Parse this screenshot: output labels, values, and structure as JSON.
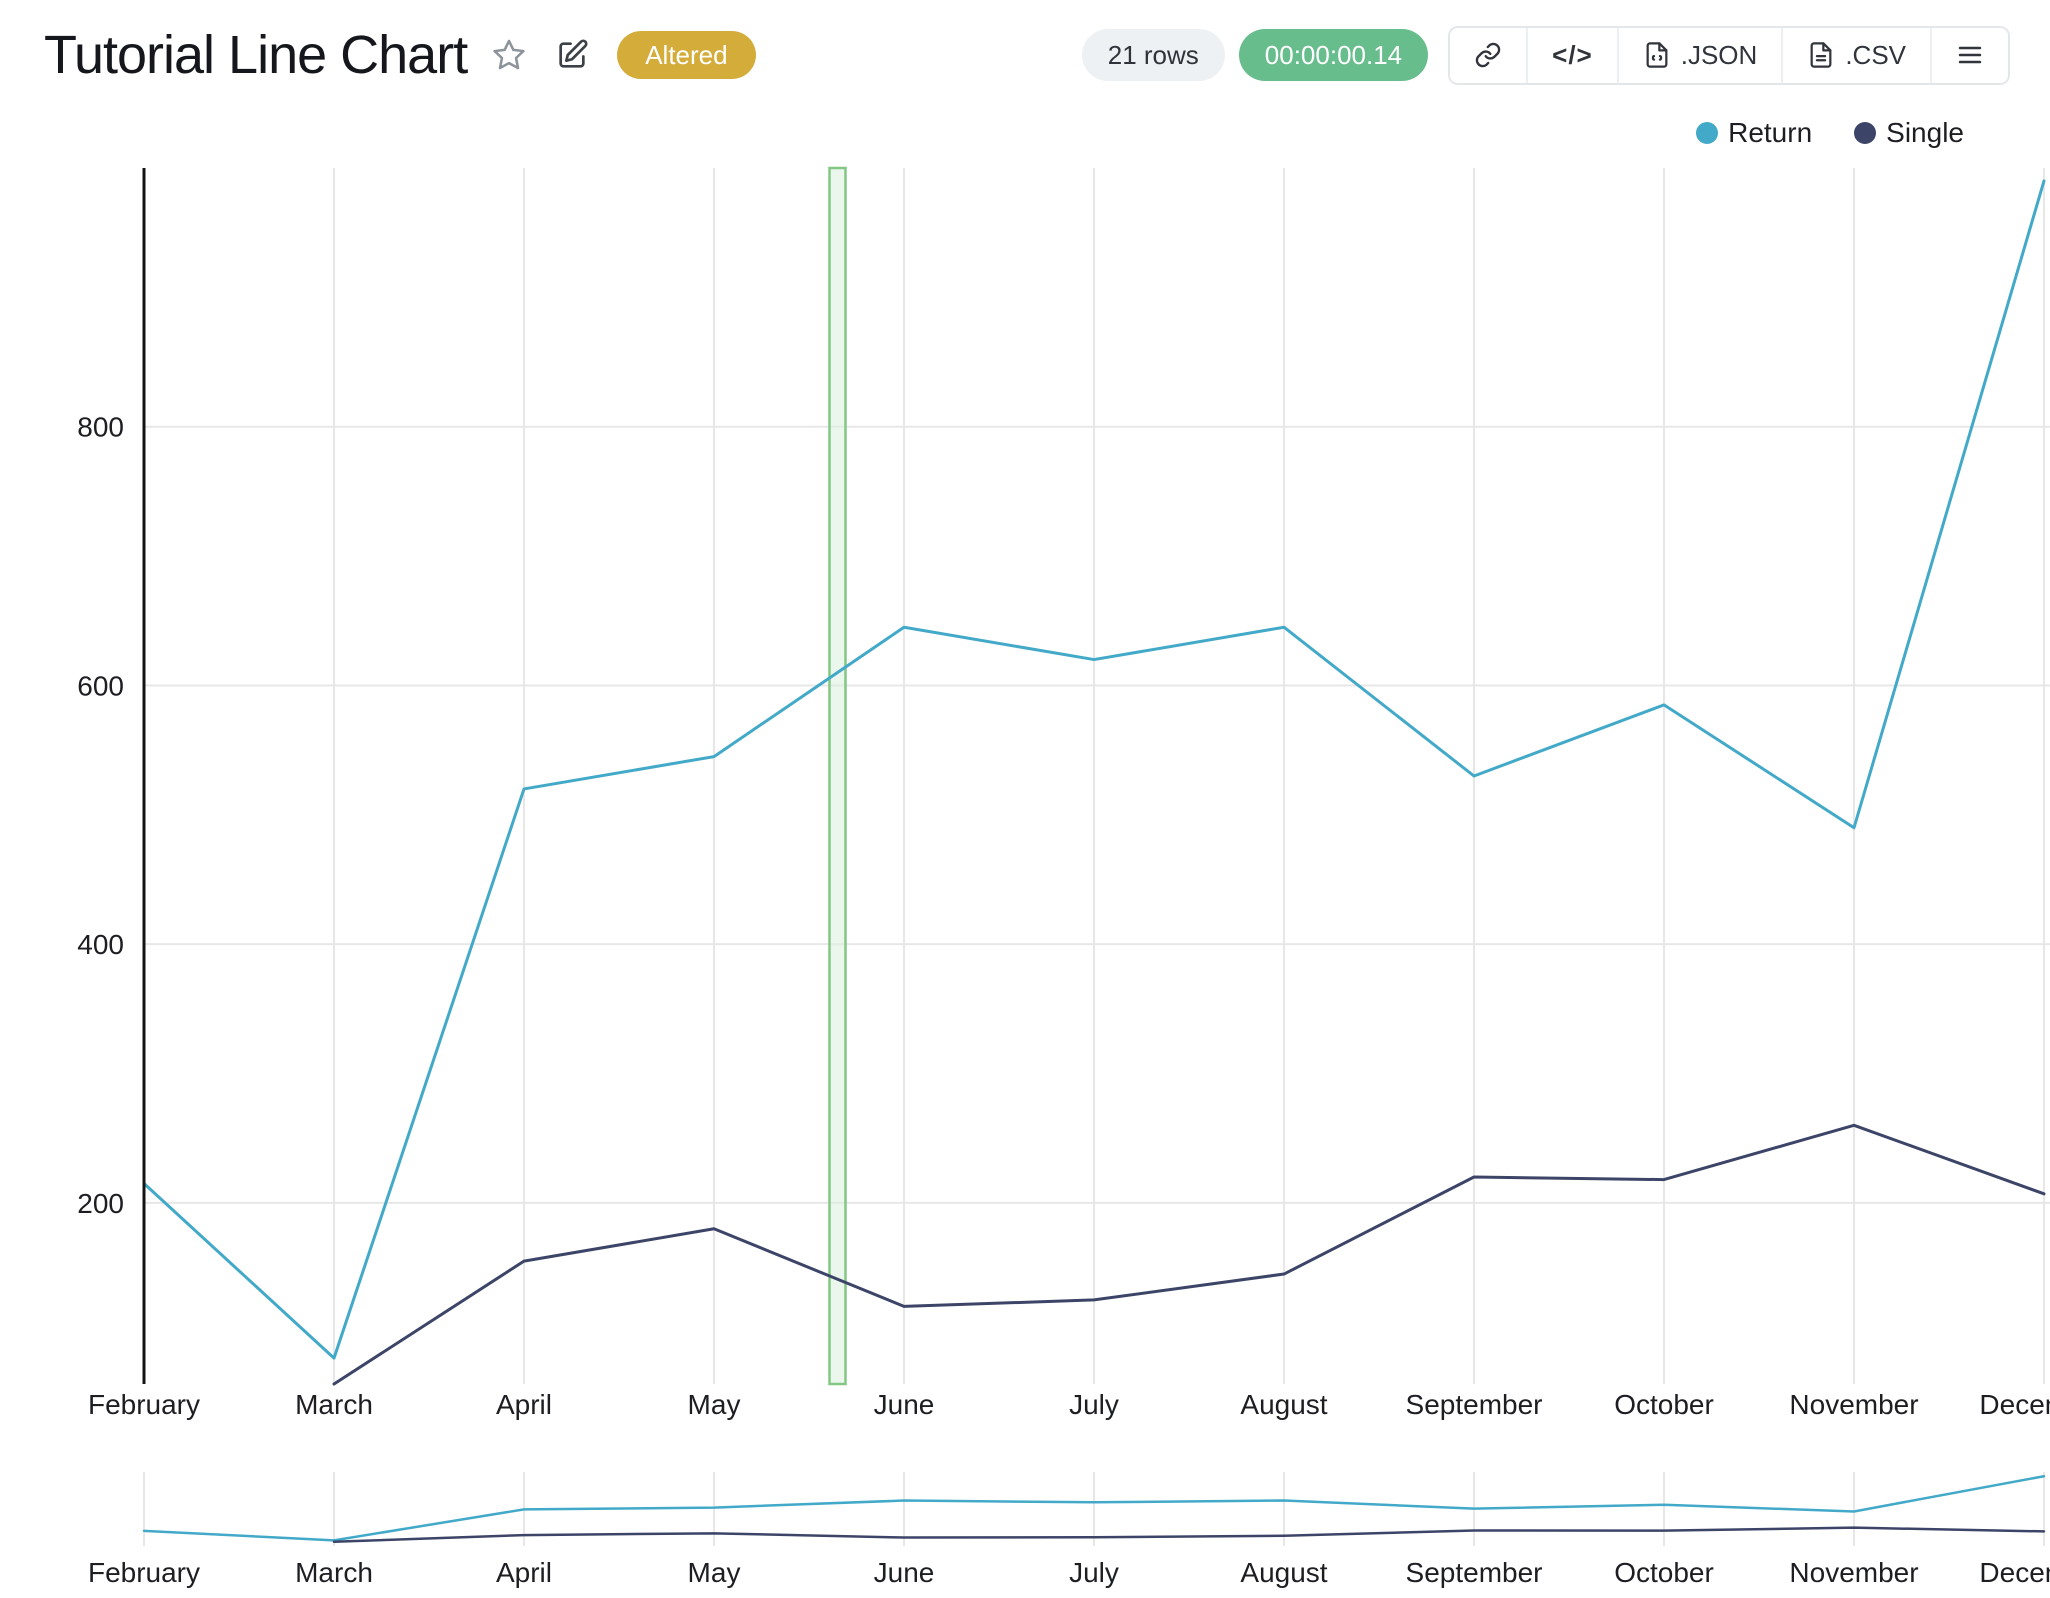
{
  "header": {
    "title": "Tutorial Line Chart",
    "altered_badge": "Altered",
    "rows_count": "21 rows",
    "duration": "00:00:00.14",
    "code_glyph": "</>",
    "export_json": ".JSON",
    "export_csv": ".CSV"
  },
  "colors": {
    "return_series": "#43a9c9",
    "single_series": "#3c4568",
    "altered_badge": "#d3ac3a",
    "duration_pill": "#68bd8d",
    "rows_pill_bg": "#eef1f3",
    "grid": "#e7e7e7",
    "axis": "#141414",
    "text": "#1c1e22",
    "highlight_fill": "#daefdc",
    "highlight_stroke": "#82c783"
  },
  "chart_data": {
    "type": "line",
    "title": "Tutorial Line Chart",
    "categories": [
      "February",
      "March",
      "April",
      "May",
      "June",
      "July",
      "August",
      "September",
      "October",
      "November",
      "December"
    ],
    "series": [
      {
        "name": "Return",
        "color": "#43a9c9",
        "values": [
          215,
          80,
          520,
          545,
          645,
          620,
          645,
          530,
          585,
          490,
          990
        ]
      },
      {
        "name": "Single",
        "color": "#3c4568",
        "values": [
          null,
          60,
          155,
          180,
          120,
          125,
          145,
          220,
          218,
          260,
          207
        ]
      }
    ],
    "y_ticks": [
      200,
      400,
      600,
      800
    ],
    "ylim": [
      60,
      1000
    ],
    "xlabel": "",
    "ylabel": "",
    "grid": true,
    "legend_position": "top-right",
    "legend": [
      "Return",
      "Single"
    ],
    "highlight_marker": {
      "month_offset": 3.65
    },
    "mini_chart": true,
    "mini_chart_ylim": [
      0,
      1050
    ]
  }
}
